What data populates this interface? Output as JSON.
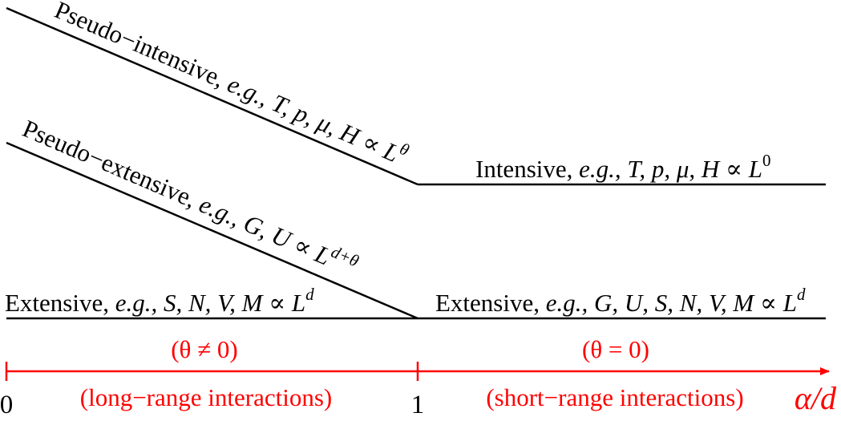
{
  "diagram": {
    "long_range": {
      "pseudo_intensive": {
        "prefix": "Pseudo−intensive, ",
        "eg": "e.g., T, p, μ, H ∝ L",
        "exp": "θ"
      },
      "pseudo_extensive": {
        "prefix": "Pseudo−extensive, ",
        "eg": "e.g., G, U ∝ L",
        "exp": "d+θ"
      },
      "extensive": {
        "prefix": "Extensive, ",
        "eg": "e.g., S, N, V, M ∝ L",
        "exp": "d"
      }
    },
    "short_range": {
      "intensive": {
        "prefix": "Intensive, ",
        "eg": "e.g., T, p, μ, H ∝ L",
        "exp": "0"
      },
      "extensive": {
        "prefix": "Extensive, ",
        "eg": "e.g., G, U, S, N, V, M ∝ L",
        "exp": "d"
      }
    },
    "axis": {
      "color": "#ff0000",
      "tick_0": "0",
      "tick_1": "1",
      "label": "α/d",
      "left_condition": "(θ ≠ 0)",
      "right_condition": "(θ = 0)",
      "left_regime": "(long−range interactions)",
      "right_regime": "(short−range interactions)"
    }
  }
}
